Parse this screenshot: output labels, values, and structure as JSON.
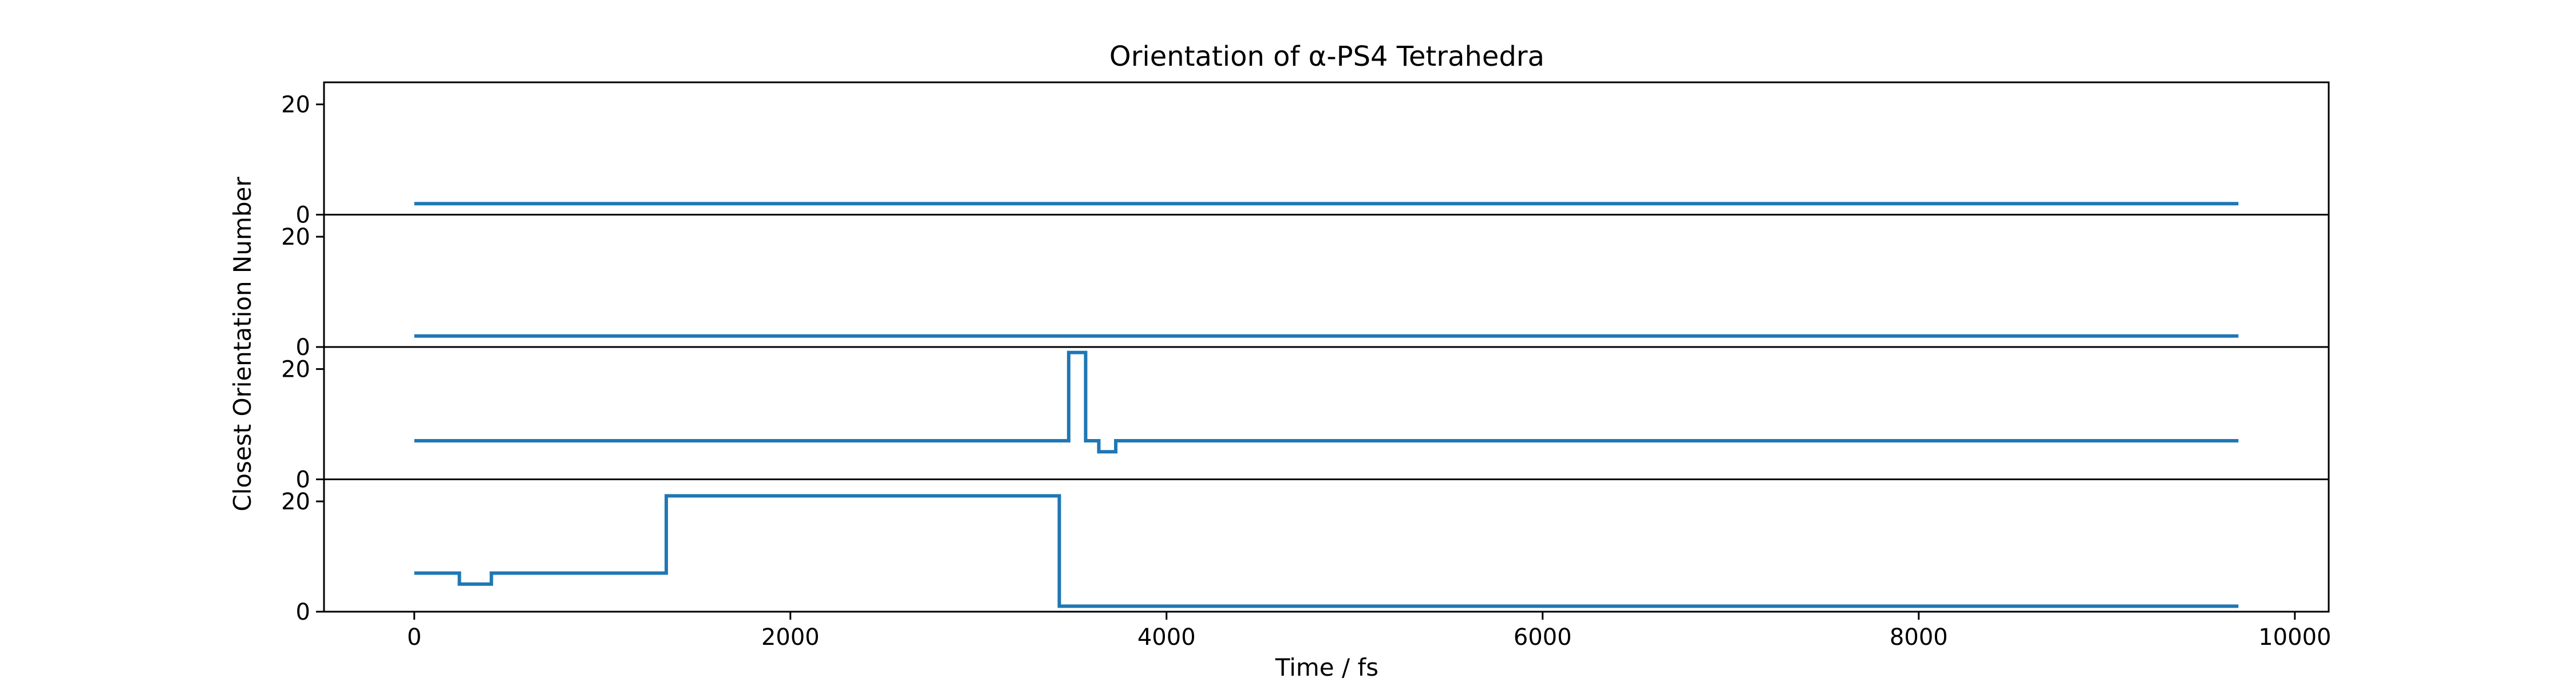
{
  "chart_data": {
    "type": "line",
    "title": "Orientation of α-PS4 Tetrahedra",
    "xlabel": "Time / fs",
    "ylabel": "Closest Orientation Number",
    "xlim": [
      -480,
      10180
    ],
    "ylim": [
      0,
      24
    ],
    "x_ticks": [
      0,
      2000,
      4000,
      6000,
      8000,
      10000
    ],
    "y_ticks": [
      0,
      20
    ],
    "grid": false,
    "legend": "none",
    "line_color": "#1f77b4",
    "panels": [
      {
        "name": "",
        "x": [
          0,
          9700
        ],
        "y": [
          2,
          2
        ]
      },
      {
        "name": "",
        "x": [
          0,
          9700
        ],
        "y": [
          2,
          2
        ]
      },
      {
        "name": "",
        "x": [
          0,
          3480,
          3480,
          3570,
          3570,
          3640,
          3640,
          3730,
          3730,
          9700
        ],
        "y": [
          7,
          7,
          23,
          23,
          7,
          7,
          5,
          5,
          7,
          7
        ]
      },
      {
        "name": "",
        "x": [
          0,
          240,
          240,
          410,
          410,
          1340,
          1340,
          3430,
          3430,
          9700
        ],
        "y": [
          7,
          7,
          5,
          5,
          7,
          7,
          21,
          21,
          1,
          1
        ]
      }
    ]
  }
}
